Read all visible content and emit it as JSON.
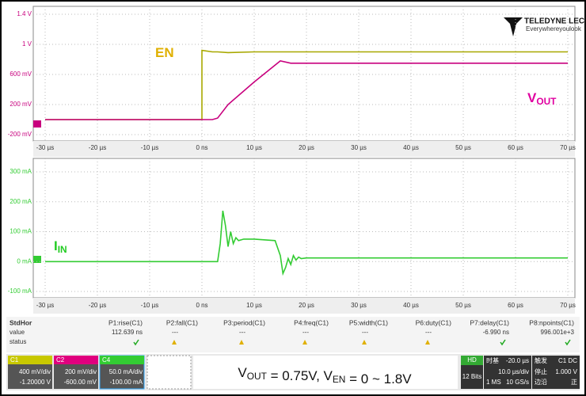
{
  "chart_data": [
    {
      "type": "line",
      "x": [
        -30,
        0,
        0,
        2,
        3,
        5,
        10,
        15,
        17,
        20,
        70
      ],
      "series": [
        {
          "color": "#a8a800",
          "values": [
            0,
            0,
            0.92,
            0.9,
            0.9,
            0.89,
            0.9,
            0.9,
            0.9,
            0.9,
            0.9
          ]
        },
        {
          "color": "#c8007e",
          "values": [
            0,
            0,
            0,
            0,
            0.02,
            0.2,
            0.5,
            0.78,
            0.75,
            0.75,
            0.75
          ]
        }
      ],
      "annotations": [
        {
          "text": "EN",
          "color": "#e0b000"
        },
        {
          "text": "V",
          "subscript": "OUT",
          "color": "#e000a0"
        }
      ],
      "xlim": [
        -30,
        70
      ],
      "xticks": [
        {
          "value": -30,
          "label": "-30 µs"
        },
        {
          "value": -20,
          "label": "-20 µs"
        },
        {
          "value": -10,
          "label": "-10 µs"
        },
        {
          "value": 0,
          "label": "0 ns"
        },
        {
          "value": 10,
          "label": "10 µs"
        },
        {
          "value": 20,
          "label": "20 µs"
        },
        {
          "value": 30,
          "label": "30 µs"
        },
        {
          "value": 40,
          "label": "40 µs"
        },
        {
          "value": 50,
          "label": "50 µs"
        },
        {
          "value": 60,
          "label": "60 µs"
        },
        {
          "value": 70,
          "label": "70 µs"
        }
      ],
      "ylim": [
        -0.2,
        1.4
      ],
      "yticks": [
        {
          "value": 1.4,
          "label": "1.4 V"
        },
        {
          "value": 1,
          "label": "1 V"
        },
        {
          "value": 0.6,
          "label": "600 mV"
        },
        {
          "value": 0.2,
          "label": "200 mV"
        },
        {
          "value": -0.2,
          "label": "-200 mV"
        }
      ],
      "grid": true
    },
    {
      "type": "line",
      "x": [
        -30,
        3,
        3.5,
        4,
        4.5,
        5,
        5.5,
        6,
        6.5,
        7,
        8,
        10,
        14,
        15,
        15.5,
        16,
        16.5,
        17,
        17.5,
        18,
        18.5,
        19,
        20,
        70
      ],
      "series": [
        {
          "color": "#33cc33",
          "values": [
            0,
            0,
            60,
            170,
            120,
            50,
            100,
            60,
            80,
            70,
            75,
            75,
            70,
            20,
            -40,
            -20,
            10,
            -10,
            20,
            5,
            15,
            10,
            12,
            12
          ]
        }
      ],
      "annotations": [
        {
          "text": "I",
          "subscript": "IN",
          "color": "#22cc22"
        }
      ],
      "xlim": [
        -30,
        70
      ],
      "xticks": [
        {
          "value": -30,
          "label": "-30 µs"
        },
        {
          "value": -20,
          "label": "-20 µs"
        },
        {
          "value": -10,
          "label": "-10 µs"
        },
        {
          "value": 0,
          "label": "0 ns"
        },
        {
          "value": 10,
          "label": "10 µs"
        },
        {
          "value": 20,
          "label": "20 µs"
        },
        {
          "value": 30,
          "label": "30 µs"
        },
        {
          "value": 40,
          "label": "40 µs"
        },
        {
          "value": 50,
          "label": "50 µs"
        },
        {
          "value": 60,
          "label": "60 µs"
        },
        {
          "value": 70,
          "label": "70 µs"
        }
      ],
      "ylim": [
        -100,
        300
      ],
      "yticks": [
        {
          "value": 300,
          "label": "300 mA"
        },
        {
          "value": 200,
          "label": "200 mA"
        },
        {
          "value": 100,
          "label": "100 mA"
        },
        {
          "value": 0,
          "label": "0 mA"
        },
        {
          "value": -100,
          "label": "-100 mA"
        }
      ],
      "grid": true
    }
  ],
  "logo": {
    "brand": "TELEDYNE LECROY",
    "tagline": "Everywhereyoulook"
  },
  "measurements": {
    "header": [
      "StdHor",
      "P1:rise(C1)",
      "P2:fall(C1)",
      "P3:period(C1)",
      "P4:freq(C1)",
      "P5:width(C1)",
      "P6:duty(C1)",
      "P7:delay(C1)",
      "P8:npoints(C1)"
    ],
    "value_row": [
      "value",
      "112.639 ns",
      "---",
      "---",
      "---",
      "---",
      "---",
      "-6.990 ns",
      "996.001e+3"
    ],
    "status_row": [
      "status"
    ]
  },
  "channels": [
    {
      "name": "C1",
      "scale": "400 mV/div",
      "offset": "-1.20000 V"
    },
    {
      "name": "C2",
      "scale": "200 mV/div",
      "offset": "-600.00 mV"
    },
    {
      "name": "C4",
      "scale": "50.0 mA/div",
      "offset": "-100.00 mA"
    }
  ],
  "caption": [
    {
      "text": "V",
      "subscript": "OUT"
    },
    {
      "text": " = 0.75V, V",
      "subscript": "EN"
    },
    {
      "text": " = 0 ~ 1.8V"
    }
  ],
  "acquisition": {
    "hd": "HD",
    "bits": "12 Bits",
    "timebase_title": "时基",
    "delay": "-20.0 µs",
    "points": "1 MS",
    "time_div": "10.0 µs/div",
    "rate": "10 GS/s",
    "trigger_title": "触发",
    "trigger_channel": "C1 DC",
    "mode": "停止",
    "level": "1.000 V",
    "edge": "边沿",
    "slope": "正"
  }
}
